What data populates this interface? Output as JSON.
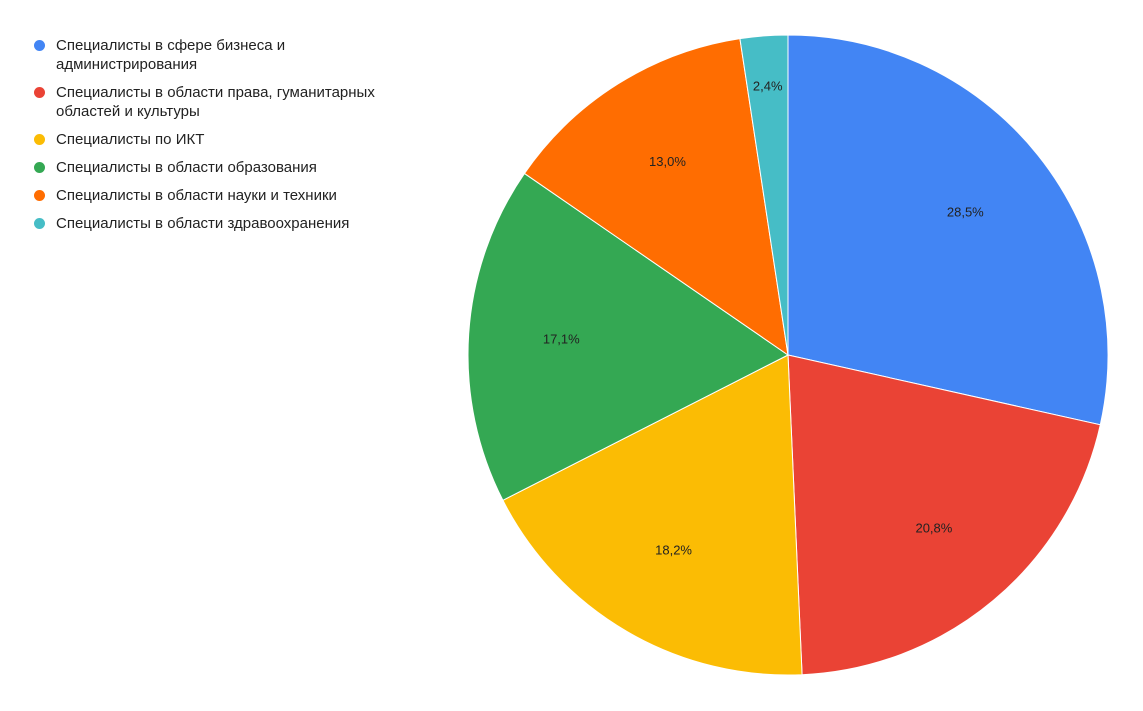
{
  "chart_data": {
    "type": "pie",
    "legend_position": "left-top",
    "slices": [
      {
        "label": "Специалисты в сфере бизнеса и администрирования",
        "value": 28.5,
        "display": "28,5%",
        "color": "#4285f4"
      },
      {
        "label": "Специалисты в области права, гуманитарных областей и культуры",
        "value": 20.8,
        "display": "20,8%",
        "color": "#ea4335"
      },
      {
        "label": "Специалисты по ИКТ",
        "value": 18.2,
        "display": "18,2%",
        "color": "#fbbc04"
      },
      {
        "label": "Специалисты в области образования",
        "value": 17.1,
        "display": "17,1%",
        "color": "#34a853"
      },
      {
        "label": "Специалисты в области науки и техники",
        "value": 13.0,
        "display": "13,0%",
        "color": "#ff6d01"
      },
      {
        "label": "Специалисты в области здравоохранения",
        "value": 2.4,
        "display": "2,4%",
        "color": "#46bdc6"
      }
    ]
  }
}
